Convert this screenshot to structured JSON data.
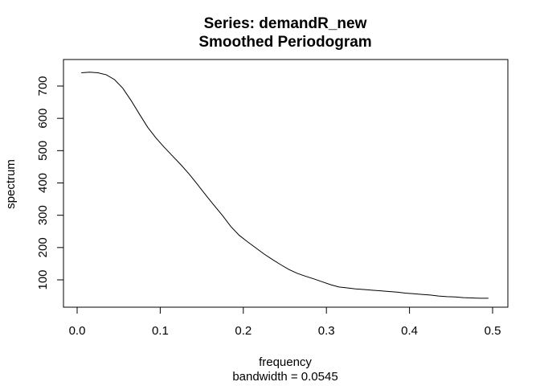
{
  "chart_data": {
    "type": "line",
    "title": "Series: demandR_new",
    "subtitle": "Smoothed Periodogram",
    "xlabel": "frequency",
    "xsublabel": "bandwidth = 0.0545",
    "ylabel": "spectrum",
    "xlim": [
      0,
      0.5
    ],
    "ylim": [
      40,
      750
    ],
    "xticks": [
      0,
      0.1,
      0.2,
      0.3,
      0.4,
      0.5
    ],
    "xtick_labels": [
      "0.0",
      "0.1",
      "0.2",
      "0.3",
      "0.4",
      "0.5"
    ],
    "yticks": [
      100,
      200,
      300,
      400,
      500,
      600,
      700
    ],
    "ytick_labels": [
      "100",
      "200",
      "300",
      "400",
      "500",
      "600",
      "700"
    ],
    "grid": false,
    "line_color": "#000000",
    "x": [
      0.005,
      0.015,
      0.025,
      0.035,
      0.045,
      0.055,
      0.065,
      0.075,
      0.085,
      0.095,
      0.105,
      0.115,
      0.125,
      0.135,
      0.145,
      0.155,
      0.165,
      0.175,
      0.185,
      0.195,
      0.205,
      0.215,
      0.225,
      0.235,
      0.245,
      0.255,
      0.265,
      0.275,
      0.285,
      0.295,
      0.305,
      0.315,
      0.325,
      0.335,
      0.345,
      0.355,
      0.365,
      0.375,
      0.385,
      0.395,
      0.405,
      0.415,
      0.425,
      0.435,
      0.445,
      0.455,
      0.465,
      0.475,
      0.485,
      0.495
    ],
    "y": [
      741,
      743,
      741,
      735,
      720,
      693,
      655,
      613,
      572,
      539,
      510,
      483,
      456,
      427,
      395,
      362,
      330,
      299,
      265,
      238,
      218,
      199,
      180,
      163,
      147,
      132,
      120,
      111,
      103,
      94,
      85,
      78,
      75,
      72,
      70,
      68,
      66,
      64,
      62,
      59,
      57,
      55,
      53,
      50,
      48,
      47,
      45,
      44,
      43,
      43
    ]
  }
}
